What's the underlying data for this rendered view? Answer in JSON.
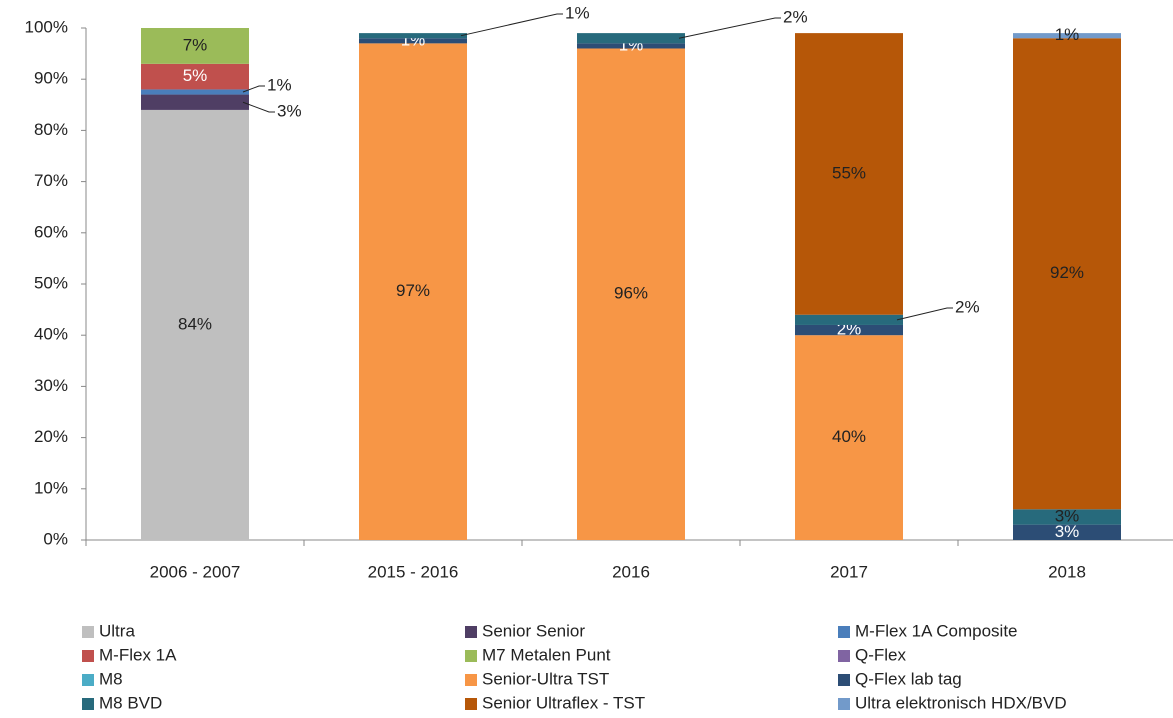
{
  "chart_data": {
    "type": "stacked-bar",
    "categories": [
      "2006 - 2007",
      "2015 - 2016",
      "2016",
      "2017",
      "2018"
    ],
    "ylim": [
      0,
      100
    ],
    "yticks": [
      {
        "value": 0,
        "label": "0%"
      },
      {
        "value": 10,
        "label": "10%"
      },
      {
        "value": 20,
        "label": "20%"
      },
      {
        "value": 30,
        "label": "30%"
      },
      {
        "value": 40,
        "label": "40%"
      },
      {
        "value": 50,
        "label": "50%"
      },
      {
        "value": 60,
        "label": "60%"
      },
      {
        "value": 70,
        "label": "70%"
      },
      {
        "value": 80,
        "label": "80%"
      },
      {
        "value": 90,
        "label": "90%"
      },
      {
        "value": 100,
        "label": "100%"
      }
    ],
    "legend": "bottom",
    "series": [
      {
        "name": "Ultra",
        "color": "#bfbfbf",
        "values": [
          84,
          null,
          null,
          null,
          null
        ],
        "value_labels": [
          "84%",
          null,
          null,
          null,
          null
        ]
      },
      {
        "name": "Senior Senior",
        "color": "#4f3e64",
        "values": [
          3,
          null,
          null,
          null,
          null
        ],
        "value_labels": [
          "3%",
          null,
          null,
          null,
          null
        ]
      },
      {
        "name": "M-Flex 1A Composite",
        "color": "#4a7ebb",
        "values": [
          1,
          null,
          null,
          null,
          null
        ],
        "value_labels": [
          "1%",
          null,
          null,
          null,
          null
        ]
      },
      {
        "name": "M-Flex 1A",
        "color": "#c0504d",
        "values": [
          5,
          null,
          null,
          null,
          null
        ],
        "value_labels": [
          "5%",
          null,
          null,
          null,
          null
        ]
      },
      {
        "name": "M7 Metalen Punt",
        "color": "#9bbb59",
        "values": [
          7,
          null,
          null,
          null,
          null
        ],
        "value_labels": [
          "7%",
          null,
          null,
          null,
          null
        ]
      },
      {
        "name": "Q-Flex",
        "color": "#8064a2",
        "values": [
          null,
          null,
          null,
          null,
          null
        ]
      },
      {
        "name": "M8",
        "color": "#4bacc6",
        "values": [
          null,
          null,
          null,
          null,
          null
        ]
      },
      {
        "name": "Senior-Ultra TST",
        "color": "#f79646",
        "values": [
          null,
          97,
          96,
          40,
          null
        ],
        "value_labels": [
          null,
          "97%",
          "96%",
          "40%",
          null
        ]
      },
      {
        "name": "Q-Flex lab tag",
        "color": "#2c4d75",
        "values": [
          null,
          1,
          1,
          2,
          3
        ],
        "value_labels": [
          null,
          "1%",
          "1%",
          "2%",
          "3%"
        ]
      },
      {
        "name": "M8 BVD",
        "color": "#276a7c",
        "values": [
          null,
          1,
          2,
          2,
          3
        ],
        "value_labels": [
          null,
          "1%",
          "2%",
          "2%",
          "3%"
        ]
      },
      {
        "name": "Senior Ultraflex - TST",
        "color": "#b65708",
        "values": [
          null,
          null,
          null,
          55,
          92
        ],
        "value_labels": [
          null,
          null,
          null,
          "55%",
          "92%"
        ]
      },
      {
        "name": "Ultra elektronisch HDX/BVD",
        "color": "#729aca",
        "values": [
          null,
          null,
          null,
          null,
          1
        ],
        "value_labels": [
          null,
          null,
          null,
          null,
          "1%"
        ]
      }
    ]
  }
}
